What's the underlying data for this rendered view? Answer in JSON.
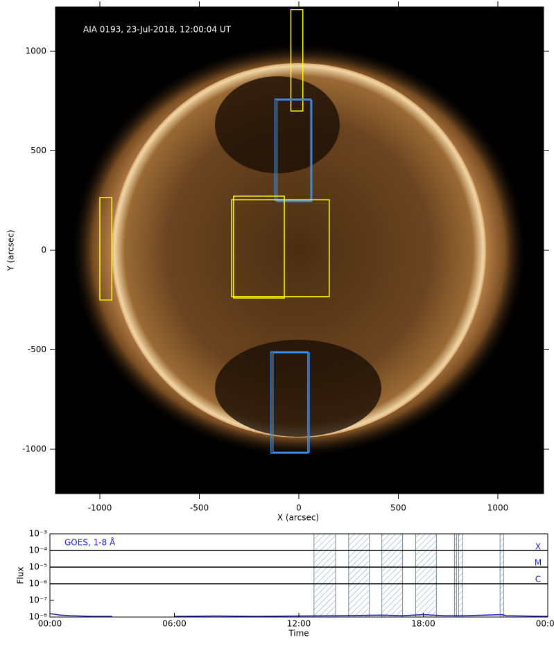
{
  "chart_data": [
    {
      "type": "image",
      "title": "AIA 0193, 23-Jul-2018, 12:00:04 UT",
      "x_label": "X (arcsec)",
      "y_label": "Y (arcsec)",
      "xlim": [
        -1223,
        1230
      ],
      "ylim": [
        -1223,
        1223
      ],
      "xticks": [
        -1000,
        -500,
        0,
        500,
        1000
      ],
      "yticks": [
        -1000,
        -500,
        0,
        500,
        1000
      ],
      "rectangles": [
        {
          "color": "#ffff00",
          "x": [
            -40,
            20
          ],
          "y": [
            700,
            1210
          ]
        },
        {
          "color": "#3a8ef0",
          "x": [
            -120,
            60
          ],
          "y": [
            250,
            760
          ]
        },
        {
          "color": "#3a8ef0",
          "x": [
            -110,
            65
          ],
          "y": [
            245,
            755
          ]
        },
        {
          "color": "#ffff00",
          "x": [
            -1000,
            -940
          ],
          "y": [
            -250,
            265
          ]
        },
        {
          "color": "#ffff00",
          "x": [
            -338,
            153
          ],
          "y": [
            -233,
            254
          ]
        },
        {
          "color": "#ffff00",
          "x": [
            -328,
            -73
          ],
          "y": [
            -240,
            272
          ]
        },
        {
          "color": "#3a8ef0",
          "x": [
            -140,
            45
          ],
          "y": [
            -1020,
            -510
          ]
        },
        {
          "color": "#3a8ef0",
          "x": [
            -130,
            52
          ],
          "y": [
            -1015,
            -515
          ]
        }
      ]
    },
    {
      "type": "line",
      "legend_text": "GOES, 1-8 Å",
      "x_label": "Time",
      "y_label": "Flux",
      "log_y": true,
      "xlim": [
        0,
        24
      ],
      "ylim": [
        1e-08,
        0.001
      ],
      "xticks": [
        {
          "value": 0,
          "label": "00:00"
        },
        {
          "value": 6,
          "label": "06:00"
        },
        {
          "value": 12,
          "label": "12:00"
        },
        {
          "value": 18,
          "label": "18:00"
        },
        {
          "value": 24,
          "label": "00:00"
        }
      ],
      "yticks": [
        {
          "value": 1e-08,
          "label": "10⁻⁸"
        },
        {
          "value": 1e-07,
          "label": "10⁻⁷"
        },
        {
          "value": 1e-06,
          "label": "10⁻⁶"
        },
        {
          "value": 1e-05,
          "label": "10⁻⁵"
        },
        {
          "value": 0.0001,
          "label": "10⁻⁴"
        },
        {
          "value": 0.001,
          "label": "10⁻³"
        }
      ],
      "flare_classes": [
        {
          "label": "X",
          "value": 0.0001
        },
        {
          "label": "M",
          "value": 1e-05
        },
        {
          "label": "C",
          "value": 1e-06
        }
      ],
      "intervals": [
        [
          12.73,
          13.77
        ],
        [
          14.4,
          15.4
        ],
        [
          16.0,
          17.0
        ],
        [
          17.63,
          18.63
        ],
        [
          19.5,
          19.6
        ],
        [
          19.7,
          19.9
        ],
        [
          21.7,
          21.87
        ]
      ],
      "series": [
        {
          "name": "GOES",
          "color": "#1a1aa8",
          "x": [
            0,
            0.5,
            1,
            2,
            3,
            3.3,
            6,
            8,
            10,
            12,
            14,
            16,
            17,
            18,
            19,
            20,
            21.8,
            22,
            24
          ],
          "values": [
            1.6e-08,
            1.3e-08,
            1.2e-08,
            1.1e-08,
            1.1e-08,
            null,
            1.1e-08,
            1.15e-08,
            1.1e-08,
            1.15e-08,
            1.2e-08,
            1.3e-08,
            1.2e-08,
            1.4e-08,
            1.2e-08,
            1.2e-08,
            1.4e-08,
            1.2e-08,
            1.1e-08
          ]
        }
      ]
    }
  ]
}
